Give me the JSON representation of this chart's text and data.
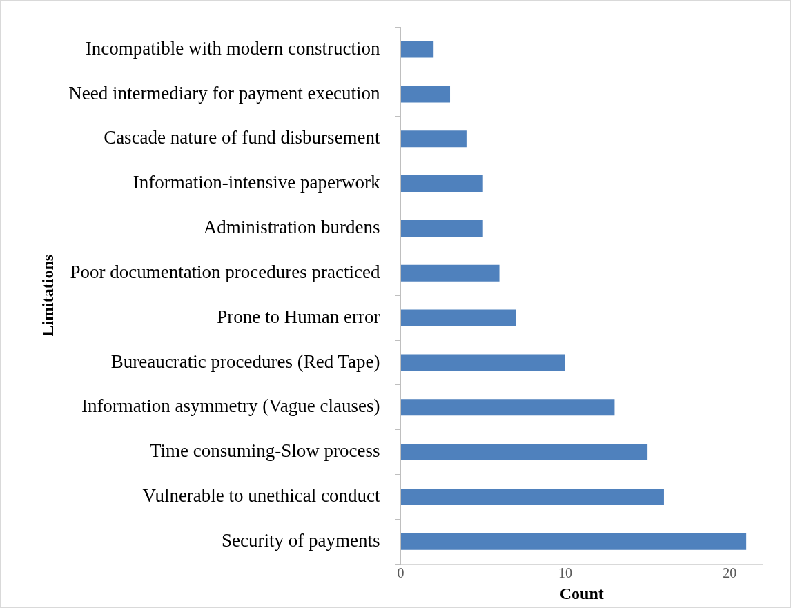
{
  "chart_data": {
    "type": "bar",
    "orientation": "horizontal",
    "xlabel": "Count",
    "ylabel": "Limitations",
    "categories": [
      "Incompatible with modern construction",
      "Need intermediary for payment execution",
      "Cascade nature of fund disbursement",
      "Information-intensive paperwork",
      "Administration burdens",
      "Poor documentation procedures practiced",
      "Prone to Human error",
      "Bureaucratic procedures (Red Tape)",
      "Information asymmetry (Vague clauses)",
      "Time consuming-Slow process",
      "Vulnerable to unethical conduct",
      "Security of payments"
    ],
    "values": [
      2,
      3,
      4,
      5,
      5,
      6,
      7,
      10,
      13,
      15,
      16,
      21
    ],
    "color": "#4f81bd",
    "xlim": [
      0,
      22
    ],
    "xticks": [
      0,
      10,
      20
    ],
    "grid": "x",
    "legend": false
  }
}
